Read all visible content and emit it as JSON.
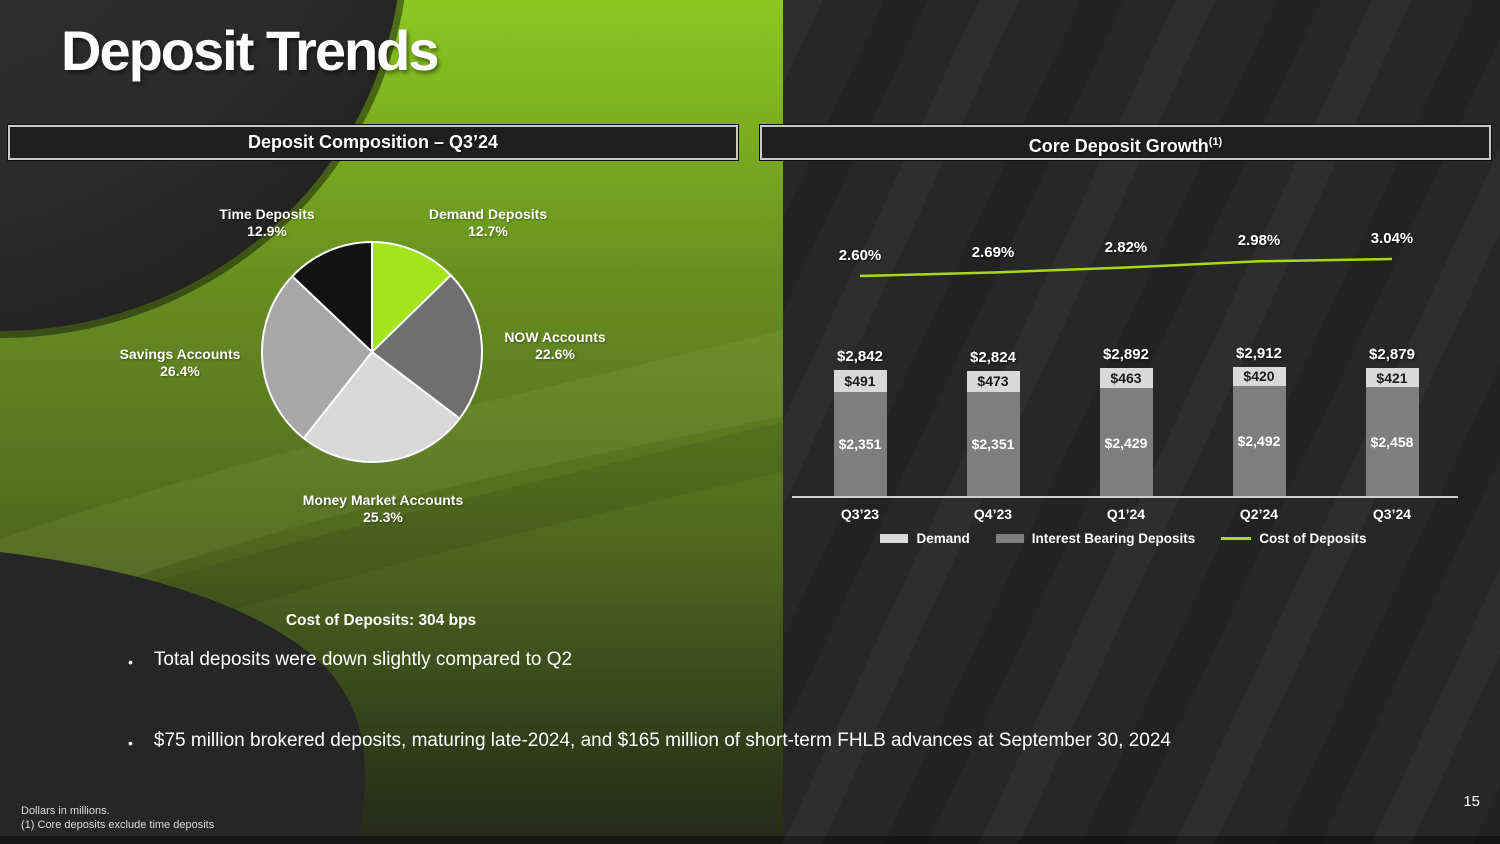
{
  "slide": {
    "title": "Deposit Trends",
    "page_number": "15",
    "bullet_char": "•",
    "cost_note": "Cost of Deposits: 304 bps",
    "bullets": [
      "Total deposits were down slightly compared to Q2",
      "$75 million brokered deposits, maturing late-2024, and $165 million of short-term FHLB advances at September 30, 2024"
    ],
    "footnotes": [
      "Dollars in millions.",
      "(1) Core deposits exclude time deposits"
    ]
  },
  "panels": {
    "left_header": "Deposit Composition – Q3’24",
    "right_header": "Core Deposit Growth",
    "right_header_sup": "(1)"
  },
  "colors": {
    "accent_green": "#82c41e",
    "pie_demand": "#a3e41b",
    "pie_now": "#6f6f6f",
    "pie_money_market": "#d9d9d9",
    "pie_savings": "#a7a7a7",
    "pie_time": "#121212",
    "bar_demand": "#d9d9d9",
    "bar_interest_bearing": "#7e7e7e",
    "cost_line": "#a8d818"
  },
  "chart_data": [
    {
      "type": "pie",
      "title": "Deposit Composition – Q3’24",
      "labels": [
        "Demand Deposits",
        "NOW Accounts",
        "Money Market Accounts",
        "Savings Accounts",
        "Time Deposits"
      ],
      "values": [
        12.7,
        22.6,
        25.3,
        26.4,
        12.9
      ],
      "unit": "%",
      "colors": [
        "#a3e41b",
        "#6f6f6f",
        "#d9d9d9",
        "#a7a7a7",
        "#121212"
      ],
      "start_angle": "12 o'clock, clockwise",
      "note": "Cost of Deposits: 304 bps"
    },
    {
      "type": "bar",
      "title": "Core Deposit Growth (1)",
      "categories": [
        "Q3’23",
        "Q4’23",
        "Q1’24",
        "Q2’24",
        "Q3’24"
      ],
      "series": [
        {
          "name": "Demand",
          "values": [
            491,
            473,
            463,
            420,
            421
          ],
          "color": "#d9d9d9",
          "position": "top"
        },
        {
          "name": "Interest Bearing Deposits",
          "values": [
            2351,
            2351,
            2429,
            2492,
            2458
          ],
          "color": "#7e7e7e",
          "position": "bottom"
        }
      ],
      "totals": [
        2842,
        2824,
        2892,
        2912,
        2879
      ],
      "line_series": {
        "name": "Cost of Deposits",
        "values": [
          2.6,
          2.69,
          2.82,
          2.98,
          3.04
        ],
        "unit": "%",
        "color": "#a8d818"
      },
      "stacked": true,
      "value_prefix": "$",
      "units": "Dollars in millions",
      "y_axis_visible": false,
      "ylim": [
        0,
        3000
      ],
      "legend_position": "bottom"
    }
  ]
}
